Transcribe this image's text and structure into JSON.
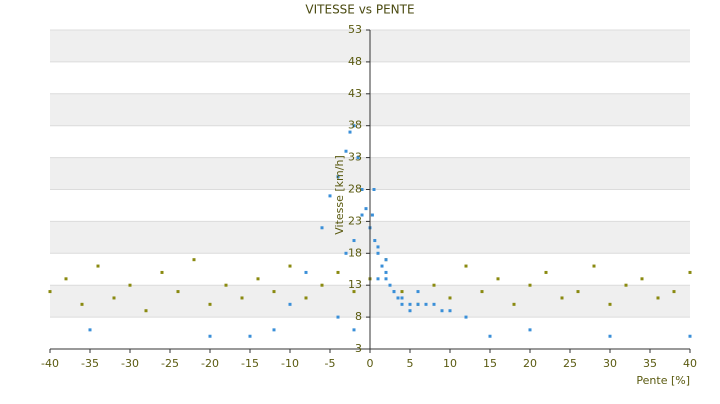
{
  "chart_data": {
    "type": "scatter",
    "title": "VITESSE vs PENTE",
    "x_label": "Pente [%]",
    "y_label": "Vitesse [km/h]",
    "xlim": [
      -40,
      40
    ],
    "xticks": [
      -40,
      -35,
      -30,
      -25,
      -20,
      -15,
      -10,
      -5,
      0,
      5,
      10,
      15,
      20,
      25,
      30,
      35,
      40
    ],
    "ylim": [
      3,
      53
    ],
    "yticks": [
      3,
      8,
      13,
      18,
      23,
      28,
      33,
      38,
      43,
      48,
      53
    ],
    "banded": true,
    "series": [
      {
        "color": "#3a8fd8",
        "x": [
          -5,
          -4,
          -3,
          -2.5,
          -2,
          -1.5,
          -1,
          -0.5,
          0,
          0.3,
          0.6,
          1,
          1.5,
          2,
          2.5,
          3,
          3.5,
          4,
          5,
          6,
          7,
          8,
          10,
          12,
          -6,
          -8,
          -10,
          -3,
          -2,
          -1,
          0.5,
          1,
          2,
          3,
          4,
          5,
          -12,
          -20,
          -35,
          -15,
          15,
          20,
          30,
          40,
          -4,
          -2,
          1,
          2,
          6,
          9
        ],
        "values": [
          27,
          30,
          34,
          37,
          38,
          33,
          28,
          25,
          22,
          24,
          20,
          18,
          16,
          14,
          13,
          12,
          11,
          11,
          10,
          10,
          10,
          10,
          9,
          8,
          22,
          15,
          10,
          18,
          20,
          24,
          28,
          19,
          15,
          12,
          10,
          9,
          6,
          5,
          6,
          5,
          5,
          6,
          5,
          5,
          8,
          6,
          14,
          17,
          12,
          9
        ]
      },
      {
        "color": "#8a8a10",
        "x": [
          -40,
          -38,
          -36,
          -34,
          -32,
          -30,
          -28,
          -26,
          -24,
          -22,
          -20,
          -18,
          -16,
          -14,
          -12,
          -10,
          -8,
          -6,
          -4,
          -2,
          0,
          2,
          4,
          6,
          8,
          10,
          12,
          14,
          16,
          18,
          20,
          22,
          24,
          26,
          28,
          30,
          32,
          34,
          36,
          38,
          40
        ],
        "values": [
          12,
          14,
          10,
          16,
          11,
          13,
          9,
          15,
          12,
          17,
          10,
          13,
          11,
          14,
          12,
          16,
          11,
          13,
          15,
          12,
          14,
          17,
          12,
          10,
          13,
          11,
          16,
          12,
          14,
          10,
          13,
          15,
          11,
          12,
          16,
          10,
          13,
          14,
          11,
          12,
          15
        ]
      }
    ]
  }
}
